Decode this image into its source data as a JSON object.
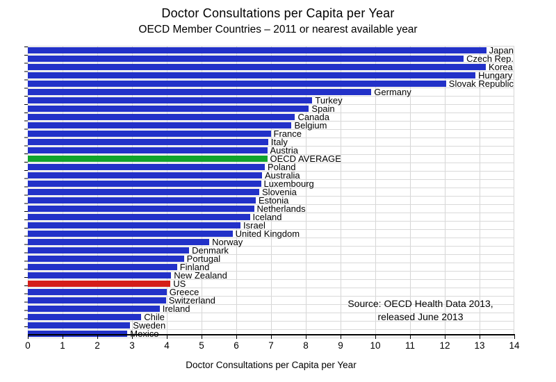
{
  "title": "Doctor Consultations per Capita per Year",
  "subtitle": "OECD Member Countries – 2011 or nearest available year",
  "source": {
    "line1": "Source:  OECD Health Data 2013,",
    "line2": "released June 2013"
  },
  "colors": {
    "default": "#2231c8",
    "average": "#11a32d",
    "us": "#d41d18",
    "gridline": "#d6d6d6"
  },
  "chart_data": {
    "type": "bar",
    "orientation": "horizontal",
    "title": "Doctor Consultations per Capita per Year",
    "subtitle": "OECD Member Countries – 2011 or nearest available year",
    "xlabel": "Doctor Consultations per Capita per Year",
    "ylabel": "",
    "xlim": [
      0,
      14
    ],
    "xticks": [
      0,
      1,
      2,
      3,
      4,
      5,
      6,
      7,
      8,
      9,
      10,
      11,
      12,
      13,
      14
    ],
    "grid": true,
    "legend": "none",
    "categories": [
      "Japan",
      "Czech Rep.",
      "Korea",
      "Hungary",
      "Slovak Republic",
      "Germany",
      "Turkey",
      "Spain",
      "Canada",
      "Belgium",
      "France",
      "Italy",
      "Austria",
      "OECD AVERAGE",
      "Poland",
      "Australia",
      "Luxembourg",
      "Slovenia",
      "Estonia",
      "Netherlands",
      "Iceland",
      "Israel",
      "United Kingdom",
      "Norway",
      "Denmark",
      "Portugal",
      "Finland",
      "New Zealand",
      "US",
      "Greece",
      "Switzerland",
      "Ireland",
      "Chile",
      "Sweden",
      "Mexico"
    ],
    "values": [
      13.7,
      13.3,
      13.2,
      12.9,
      12.1,
      9.9,
      8.2,
      8.1,
      7.7,
      7.6,
      7.0,
      6.93,
      6.9,
      6.9,
      6.83,
      6.75,
      6.72,
      6.67,
      6.57,
      6.52,
      6.4,
      6.13,
      5.9,
      5.23,
      4.65,
      4.5,
      4.3,
      4.13,
      4.11,
      4.0,
      3.98,
      3.8,
      3.27,
      2.95,
      2.87
    ],
    "item_colors": [
      "default",
      "default",
      "default",
      "default",
      "default",
      "default",
      "default",
      "default",
      "default",
      "default",
      "default",
      "default",
      "default",
      "average",
      "default",
      "default",
      "default",
      "default",
      "default",
      "default",
      "default",
      "default",
      "default",
      "default",
      "default",
      "default",
      "default",
      "default",
      "us",
      "default",
      "default",
      "default",
      "default",
      "default",
      "default"
    ]
  }
}
